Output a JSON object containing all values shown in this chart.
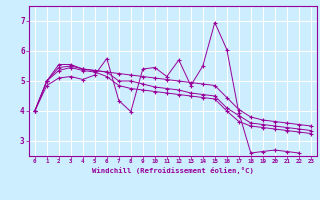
{
  "xlabel": "Windchill (Refroidissement éolien,°C)",
  "background_color": "#cceeff",
  "grid_color": "#aaddcc",
  "line_color": "#990099",
  "xlim": [
    -0.5,
    23.5
  ],
  "ylim": [
    2.5,
    7.5
  ],
  "yticks": [
    3,
    4,
    5,
    6,
    7
  ],
  "xticks": [
    0,
    1,
    2,
    3,
    4,
    5,
    6,
    7,
    8,
    9,
    10,
    11,
    12,
    13,
    14,
    15,
    16,
    17,
    18,
    19,
    20,
    21,
    22,
    23
  ],
  "series": [
    [
      4.0,
      4.85,
      5.1,
      5.15,
      5.05,
      5.2,
      5.75,
      4.35,
      3.98,
      5.4,
      5.45,
      5.15,
      5.7,
      4.85,
      5.5,
      6.95,
      6.05,
      3.95,
      2.6,
      2.65,
      2.7,
      2.65,
      2.6,
      null
    ],
    [
      4.0,
      5.0,
      5.55,
      5.55,
      5.4,
      5.35,
      5.3,
      5.25,
      5.2,
      5.15,
      5.1,
      5.05,
      5.0,
      4.95,
      4.9,
      4.85,
      4.45,
      4.05,
      3.8,
      3.7,
      3.65,
      3.6,
      3.55,
      3.5
    ],
    [
      4.0,
      5.0,
      5.45,
      5.5,
      5.4,
      5.35,
      5.3,
      5.0,
      5.0,
      4.9,
      4.8,
      4.75,
      4.7,
      4.6,
      4.55,
      4.5,
      4.1,
      3.85,
      3.6,
      3.55,
      3.5,
      3.45,
      3.4,
      3.35
    ],
    [
      4.0,
      5.0,
      5.35,
      5.45,
      5.35,
      5.3,
      5.15,
      4.85,
      4.75,
      4.7,
      4.65,
      4.6,
      4.55,
      4.5,
      4.45,
      4.4,
      4.0,
      3.65,
      3.5,
      3.45,
      3.4,
      3.35,
      3.3,
      3.25
    ]
  ]
}
